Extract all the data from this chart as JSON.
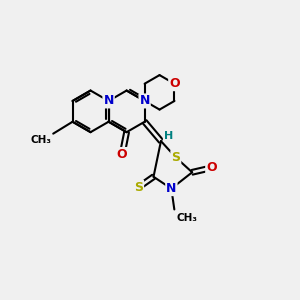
{
  "bg_color": "#f0f0f0",
  "atom_colors": {
    "C": "#000000",
    "N": "#0000cc",
    "O": "#cc0000",
    "S": "#aaaa00",
    "H": "#008080"
  },
  "bond_color": "#000000",
  "bond_width": 1.5,
  "fig_size": [
    3.0,
    3.0
  ],
  "dpi": 100
}
